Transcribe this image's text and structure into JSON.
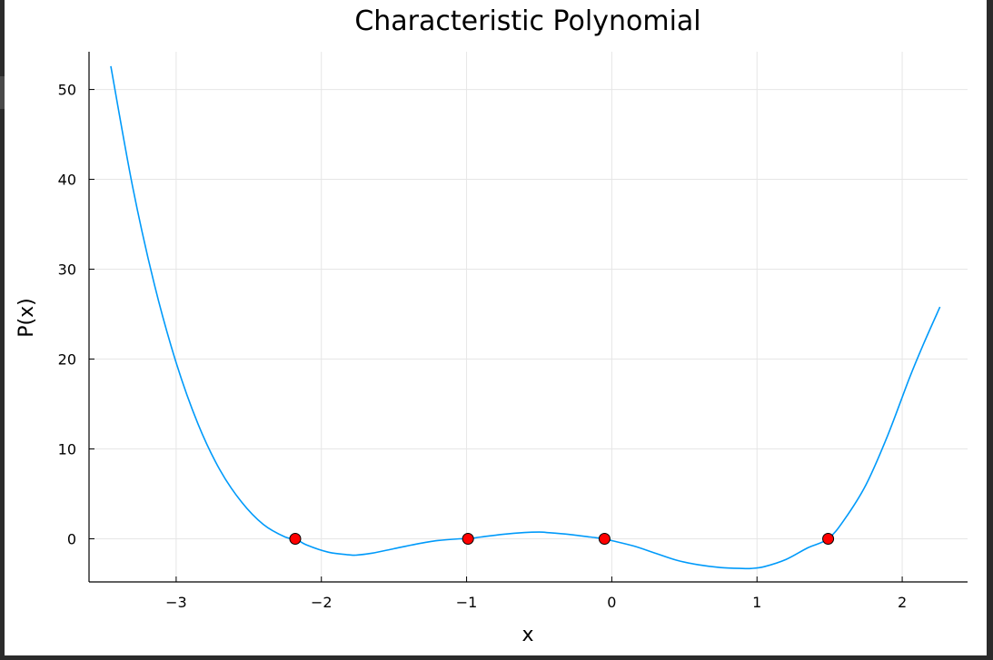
{
  "chart_data": {
    "type": "line",
    "title": "Characteristic Polynomial",
    "xlabel": "x",
    "ylabel": "P(x)",
    "xlim": [
      -3.6,
      2.45
    ],
    "ylim": [
      -4.8,
      54.2
    ],
    "xticks": [
      -3,
      -2,
      -1,
      0,
      1,
      2
    ],
    "xtick_labels": [
      "−3",
      "−2",
      "−1",
      "0",
      "1",
      "2"
    ],
    "yticks": [
      0,
      10,
      20,
      30,
      40,
      50
    ],
    "ytick_labels": [
      "0",
      "10",
      "20",
      "30",
      "40",
      "50"
    ],
    "grid": true,
    "legend": false,
    "series": [
      {
        "style": "line",
        "color": "#009AFA",
        "x": [
          -3.45,
          -3.3,
          -3.15,
          -3.0,
          -2.85,
          -2.7,
          -2.55,
          -2.4,
          -2.25,
          -2.18,
          -2.1,
          -1.95,
          -1.8,
          -1.75,
          -1.65,
          -1.5,
          -1.35,
          -1.2,
          -1.05,
          -0.99,
          -0.9,
          -0.75,
          -0.6,
          -0.5,
          -0.45,
          -0.3,
          -0.15,
          -0.05,
          0.0,
          0.15,
          0.3,
          0.45,
          0.6,
          0.75,
          0.9,
          0.96,
          1.05,
          1.2,
          1.35,
          1.49,
          1.6,
          1.75,
          1.9,
          2.05,
          2.15,
          2.26
        ],
        "y": [
          52.6,
          39.2,
          28.3,
          19.6,
          12.8,
          7.7,
          4.1,
          1.6,
          0.2,
          0.0,
          -0.7,
          -1.5,
          -1.8,
          -1.8,
          -1.6,
          -1.1,
          -0.6,
          -0.2,
          0.0,
          0.0,
          0.2,
          0.5,
          0.7,
          0.75,
          0.7,
          0.5,
          0.2,
          0.0,
          -0.2,
          -0.8,
          -1.6,
          -2.4,
          -2.9,
          -3.2,
          -3.3,
          -3.3,
          -3.1,
          -2.3,
          -1.0,
          0.0,
          2.1,
          6.0,
          11.5,
          17.9,
          21.8,
          25.8
        ]
      },
      {
        "style": "scatter",
        "color": "#FF0000",
        "x": [
          -2.18,
          -0.99,
          -0.05,
          1.49
        ],
        "y": [
          0,
          0,
          0,
          0
        ]
      }
    ]
  }
}
